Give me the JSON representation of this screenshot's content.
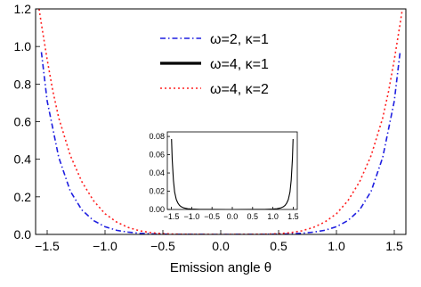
{
  "chart_data": [
    {
      "type": "line",
      "xlabel": "Emission angle θ",
      "ylabel": "",
      "xlim": [
        -1.6,
        1.6
      ],
      "ylim": [
        0,
        1.2
      ],
      "x_ticks": [
        -1.5,
        -1.0,
        -0.5,
        0.0,
        0.5,
        1.0,
        1.5
      ],
      "x_tick_labels": [
        "−1.5",
        "−1.0",
        "−0.5",
        "0.0",
        "0.5",
        "1.0",
        "1.5"
      ],
      "y_ticks": [
        0.0,
        0.2,
        0.4,
        0.6,
        0.8,
        1.0,
        1.2
      ],
      "y_tick_labels": [
        "0.0",
        "0.2",
        "0.4",
        "0.6",
        "0.8",
        "1.0",
        "1.2"
      ],
      "grid": false,
      "legend_position": "top-center",
      "series": [
        {
          "name": "ω=2, κ=1",
          "color": "#1f1fe0",
          "style": "dash-dot",
          "x": [
            -1.55,
            -1.5,
            -1.4,
            -1.3,
            -1.2,
            -1.1,
            -1.0,
            -0.9,
            -0.8,
            -0.7,
            -0.6,
            -0.5,
            -0.4,
            -0.2,
            0.0,
            0.2,
            0.4,
            0.5,
            0.6,
            0.7,
            0.8,
            0.9,
            1.0,
            1.1,
            1.2,
            1.3,
            1.4,
            1.5,
            1.55
          ],
          "y": [
            0.97,
            0.71,
            0.41,
            0.23,
            0.13,
            0.074,
            0.041,
            0.022,
            0.012,
            0.006,
            0.003,
            0.0015,
            0.0005,
            0.0001,
            0.0,
            0.0001,
            0.0005,
            0.0015,
            0.003,
            0.006,
            0.012,
            0.022,
            0.041,
            0.074,
            0.13,
            0.23,
            0.41,
            0.71,
            0.97
          ]
        },
        {
          "name": "ω=4, κ=1",
          "color": "#000000",
          "style": "solid",
          "x": [],
          "y": []
        },
        {
          "name": "ω=4, κ=2",
          "color": "#ff2020",
          "style": "dotted",
          "x": [
            -1.57,
            -1.55,
            -1.5,
            -1.45,
            -1.4,
            -1.3,
            -1.2,
            -1.1,
            -1.0,
            -0.9,
            -0.8,
            -0.7,
            -0.6,
            -0.5,
            -0.4,
            -0.2,
            0.0,
            0.2,
            0.4,
            0.5,
            0.6,
            0.7,
            0.8,
            0.9,
            1.0,
            1.1,
            1.2,
            1.3,
            1.4,
            1.45,
            1.5,
            1.55,
            1.57
          ],
          "y": [
            1.2,
            1.12,
            0.93,
            0.76,
            0.62,
            0.42,
            0.28,
            0.18,
            0.11,
            0.066,
            0.037,
            0.019,
            0.009,
            0.004,
            0.0015,
            0.0002,
            0.0,
            0.0002,
            0.0015,
            0.004,
            0.009,
            0.019,
            0.037,
            0.066,
            0.11,
            0.18,
            0.28,
            0.42,
            0.62,
            0.76,
            0.93,
            1.12,
            1.2
          ]
        }
      ]
    },
    {
      "type": "line",
      "xlabel": "",
      "ylabel": "",
      "xlim": [
        -1.6,
        1.6
      ],
      "ylim": [
        0,
        0.085
      ],
      "x_ticks": [
        -1.5,
        -1.0,
        -0.5,
        0.0,
        0.5,
        1.0,
        1.5
      ],
      "x_tick_labels": [
        "−1.5",
        "−1.0",
        "−0.5",
        "0.0",
        "0.5",
        "1.0",
        "1.5"
      ],
      "y_ticks": [
        0.0,
        0.02,
        0.04,
        0.06,
        0.08
      ],
      "y_tick_labels": [
        "0.00",
        "0.02",
        "0.04",
        "0.06",
        "0.08"
      ],
      "grid": false,
      "series": [
        {
          "name": "",
          "color": "#000000",
          "style": "solid",
          "x": [
            -1.5,
            -1.48,
            -1.45,
            -1.42,
            -1.38,
            -1.34,
            -1.3,
            -1.25,
            -1.2,
            -1.1,
            -1.0,
            -0.8,
            -0.5,
            0.0,
            0.5,
            0.8,
            1.0,
            1.1,
            1.2,
            1.25,
            1.3,
            1.34,
            1.38,
            1.42,
            1.45,
            1.48,
            1.5
          ],
          "y": [
            0.082,
            0.055,
            0.032,
            0.019,
            0.011,
            0.007,
            0.0045,
            0.0028,
            0.0018,
            0.0008,
            0.0004,
            0.0001,
            2e-05,
            0.0,
            2e-05,
            0.0001,
            0.0004,
            0.0008,
            0.0018,
            0.0028,
            0.0045,
            0.007,
            0.011,
            0.019,
            0.032,
            0.055,
            0.082
          ]
        }
      ]
    }
  ]
}
